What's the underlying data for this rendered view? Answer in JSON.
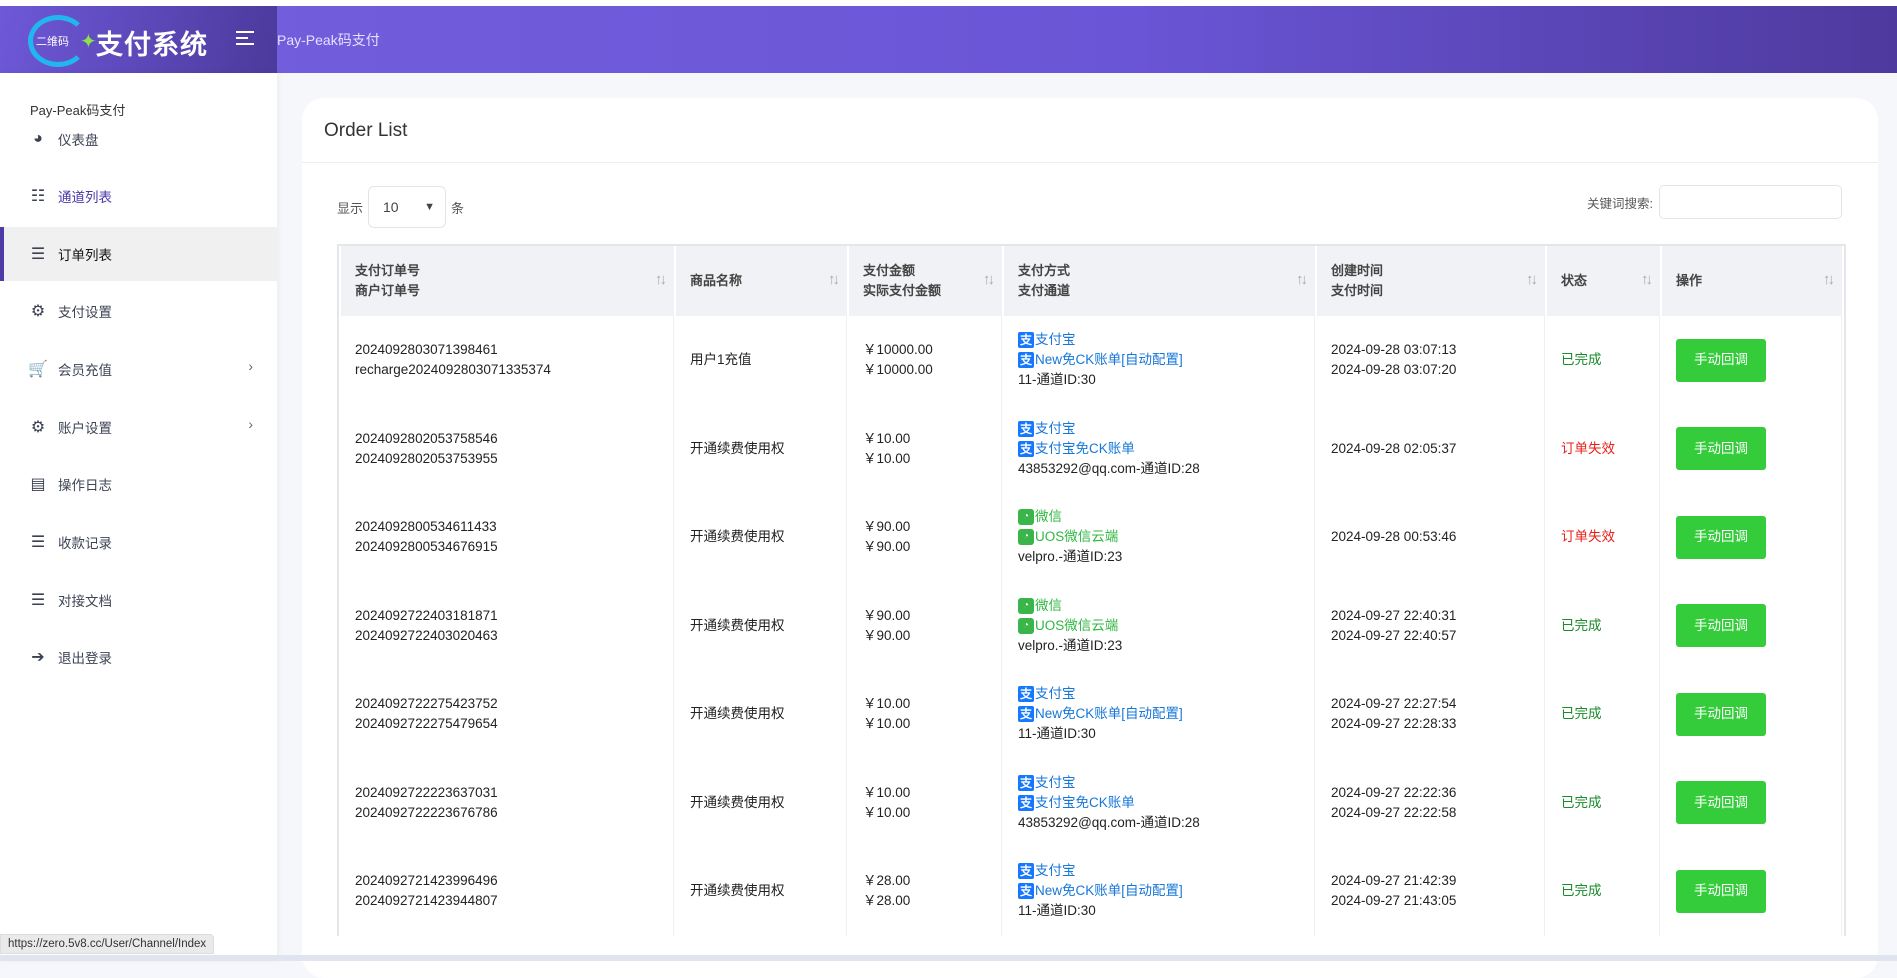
{
  "header": {
    "logo_small": "二维码",
    "logo_big": "支付系统",
    "title": "Pay-Peak码支付"
  },
  "sidebar": {
    "brand": "Pay-Peak码支付",
    "items": [
      {
        "label": "仪表盘",
        "icon": "dashboard-icon"
      },
      {
        "label": "通道列表",
        "icon": "th-list-icon"
      },
      {
        "label": "订单列表",
        "icon": "list-icon",
        "active": true
      },
      {
        "label": "支付设置",
        "icon": "gears-icon"
      },
      {
        "label": "会员充值",
        "icon": "cart-icon",
        "submenu": true
      },
      {
        "label": "账户设置",
        "icon": "gear-icon",
        "submenu": true
      },
      {
        "label": "操作日志",
        "icon": "list-alt-icon"
      },
      {
        "label": "收款记录",
        "icon": "list-ol-icon"
      },
      {
        "label": "对接文档",
        "icon": "outdent-icon"
      },
      {
        "label": "退出登录",
        "icon": "sign-out-icon"
      }
    ]
  },
  "status_url": "https://zero.5v8.cc/User/Channel/Index",
  "card": {
    "title": "Order List",
    "length_prefix": "显示",
    "length_value": "10",
    "length_suffix": "条",
    "search_label": "关键词搜索:",
    "search_value": ""
  },
  "table": {
    "headers": [
      [
        "支付订单号",
        "商户订单号"
      ],
      [
        "商品名称",
        ""
      ],
      [
        "支付金额",
        "实际支付金额"
      ],
      [
        "支付方式",
        "支付通道"
      ],
      [
        "创建时间",
        "支付时间"
      ],
      [
        "状态",
        ""
      ],
      [
        "操作",
        ""
      ]
    ],
    "action_label": "手动回调",
    "rows": [
      {
        "order": "2024092803071398461",
        "merchant": "recharge2024092803071335374",
        "product": "用户1充值",
        "amount": "￥10000.00",
        "actual": "￥10000.00",
        "method": "支付宝",
        "method_type": "alipay",
        "channel": "New免CK账单[自动配置]",
        "channel_id": "11-通道ID:30",
        "created": "2024-09-28 03:07:13",
        "paid": "2024-09-28 03:07:20",
        "status": "已完成",
        "status_type": "ok"
      },
      {
        "order": "2024092802053758546",
        "merchant": "2024092802053753955",
        "product": "开通续费使用权",
        "amount": "￥10.00",
        "actual": "￥10.00",
        "method": "支付宝",
        "method_type": "alipay",
        "channel": "支付宝免CK账单",
        "channel_id": "43853292@qq.com-通道ID:28",
        "created": "2024-09-28 02:05:37",
        "paid": "",
        "status": "订单失效",
        "status_type": "fail"
      },
      {
        "order": "2024092800534611433",
        "merchant": "2024092800534676915",
        "product": "开通续费使用权",
        "amount": "￥90.00",
        "actual": "￥90.00",
        "method": "微信",
        "method_type": "wechat",
        "channel": "UOS微信云端",
        "channel_id": "velpro.-通道ID:23",
        "created": "2024-09-28 00:53:46",
        "paid": "",
        "status": "订单失效",
        "status_type": "fail"
      },
      {
        "order": "2024092722403181871",
        "merchant": "2024092722403020463",
        "product": "开通续费使用权",
        "amount": "￥90.00",
        "actual": "￥90.00",
        "method": "微信",
        "method_type": "wechat",
        "channel": "UOS微信云端",
        "channel_id": "velpro.-通道ID:23",
        "created": "2024-09-27 22:40:31",
        "paid": "2024-09-27 22:40:57",
        "status": "已完成",
        "status_type": "ok"
      },
      {
        "order": "2024092722275423752",
        "merchant": "2024092722275479654",
        "product": "开通续费使用权",
        "amount": "￥10.00",
        "actual": "￥10.00",
        "method": "支付宝",
        "method_type": "alipay",
        "channel": "New免CK账单[自动配置]",
        "channel_id": "11-通道ID:30",
        "created": "2024-09-27 22:27:54",
        "paid": "2024-09-27 22:28:33",
        "status": "已完成",
        "status_type": "ok"
      },
      {
        "order": "2024092722223637031",
        "merchant": "2024092722223676786",
        "product": "开通续费使用权",
        "amount": "￥10.00",
        "actual": "￥10.00",
        "method": "支付宝",
        "method_type": "alipay",
        "channel": "支付宝免CK账单",
        "channel_id": "43853292@qq.com-通道ID:28",
        "created": "2024-09-27 22:22:36",
        "paid": "2024-09-27 22:22:58",
        "status": "已完成",
        "status_type": "ok"
      },
      {
        "order": "2024092721423996496",
        "merchant": "2024092721423944807",
        "product": "开通续费使用权",
        "amount": "￥28.00",
        "actual": "￥28.00",
        "method": "支付宝",
        "method_type": "alipay",
        "channel": "New免CK账单[自动配置]",
        "channel_id": "11-通道ID:30",
        "created": "2024-09-27 21:42:39",
        "paid": "2024-09-27 21:43:05",
        "status": "已完成",
        "status_type": "ok"
      }
    ]
  },
  "colors": {
    "header": "#6a55d6",
    "accent": "#4f3aa8",
    "button": "#35cc3c",
    "ok": "#1a8a2a",
    "fail": "#e8201a",
    "alipay": "#1677ff",
    "wechat": "#3ab54a"
  }
}
